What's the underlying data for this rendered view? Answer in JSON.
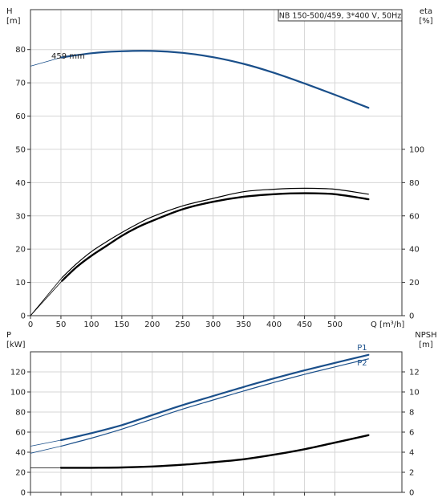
{
  "chart_data": [
    {
      "type": "line",
      "title": "NB 150-500/459, 3*400 V, 50Hz",
      "y_left_label": [
        "H",
        "[m]"
      ],
      "y_right_label": [
        "eta",
        "[%]"
      ],
      "xlabel": "Q [m³/h]",
      "x_ticks": [
        0,
        50,
        100,
        150,
        200,
        250,
        300,
        350,
        400,
        450,
        500
      ],
      "xlim": [
        0,
        610
      ],
      "y_left_ticks": [
        0,
        10,
        20,
        30,
        40,
        50,
        60,
        70,
        80
      ],
      "y_left_lim": [
        0,
        92
      ],
      "y_right_ticks": [
        0,
        20,
        40,
        60,
        80,
        100
      ],
      "y_right_lim": [
        0,
        184
      ],
      "grid": true,
      "curve_label": "459 mm",
      "series": [
        {
          "name": "459 mm",
          "axis": "left",
          "color": "#1a4f8a",
          "width": 2.2,
          "x": [
            50,
            100,
            150,
            200,
            250,
            300,
            350,
            400,
            450,
            500,
            555
          ],
          "y": [
            77.6,
            78.9,
            79.5,
            79.6,
            79.0,
            77.7,
            75.7,
            73.0,
            69.8,
            66.4,
            62.5
          ],
          "x_ext": [
            0,
            50
          ],
          "y_ext": [
            75,
            77.6
          ]
        },
        {
          "axis": "right",
          "color": "#000000",
          "width": 2.4,
          "x": [
            52,
            75,
            100,
            125,
            150,
            175,
            200,
            250,
            300,
            350,
            400,
            450,
            500,
            555
          ],
          "y": [
            21,
            29,
            36,
            42,
            48,
            53,
            57,
            64,
            68.5,
            71.5,
            73,
            73.6,
            73,
            70
          ],
          "x_ext": [
            0,
            52
          ],
          "y_ext": [
            0,
            21
          ]
        },
        {
          "axis": "right",
          "color": "#000000",
          "width": 1.2,
          "x": [
            52,
            75,
            100,
            125,
            150,
            175,
            200,
            250,
            300,
            350,
            400,
            450,
            500,
            555
          ],
          "y": [
            23,
            31,
            38.5,
            44.5,
            50,
            55,
            59.5,
            66,
            70.5,
            74.5,
            76,
            76.6,
            76,
            73
          ],
          "x_ext": [
            0,
            52
          ],
          "y_ext": [
            0,
            23
          ]
        }
      ]
    },
    {
      "type": "line",
      "y_left_label": [
        "P",
        "[kW]"
      ],
      "y_right_label": [
        "NPSH",
        "[m]"
      ],
      "x_ticks": [
        0,
        50,
        100,
        150,
        200,
        250,
        300,
        350,
        400,
        450,
        500
      ],
      "xlim": [
        0,
        610
      ],
      "y_left_ticks": [
        0,
        20,
        40,
        60,
        80,
        100,
        120
      ],
      "y_left_lim": [
        0,
        140
      ],
      "y_right_ticks": [
        0,
        2,
        4,
        6,
        8,
        10,
        12
      ],
      "y_right_lim": [
        0,
        14
      ],
      "grid": true,
      "series": [
        {
          "name": "P1",
          "axis": "left",
          "color": "#1a4f8a",
          "width": 2.2,
          "x": [
            50,
            100,
            150,
            200,
            250,
            300,
            350,
            400,
            450,
            500,
            555
          ],
          "y": [
            52,
            59,
            67,
            77,
            87,
            96,
            105,
            113.5,
            121.5,
            129,
            137
          ],
          "x_ext": [
            0,
            50
          ],
          "y_ext": [
            46,
            52
          ]
        },
        {
          "name": "P2",
          "axis": "left",
          "color": "#1a4f8a",
          "width": 1.2,
          "x": [
            50,
            100,
            150,
            200,
            250,
            300,
            350,
            400,
            450,
            500,
            555
          ],
          "y": [
            46,
            54,
            63,
            73,
            83,
            92,
            101,
            109.5,
            117.5,
            125,
            133
          ],
          "x_ext": [
            0,
            50
          ],
          "y_ext": [
            39,
            46
          ]
        },
        {
          "axis": "right",
          "color": "#000000",
          "width": 2.4,
          "x": [
            50,
            100,
            150,
            200,
            250,
            300,
            350,
            400,
            450,
            500,
            555
          ],
          "y": [
            2.45,
            2.45,
            2.48,
            2.58,
            2.75,
            3.0,
            3.3,
            3.75,
            4.3,
            4.95,
            5.7
          ],
          "x_ext": [
            0,
            50
          ],
          "y_ext": [
            2.45,
            2.45
          ]
        }
      ]
    }
  ]
}
